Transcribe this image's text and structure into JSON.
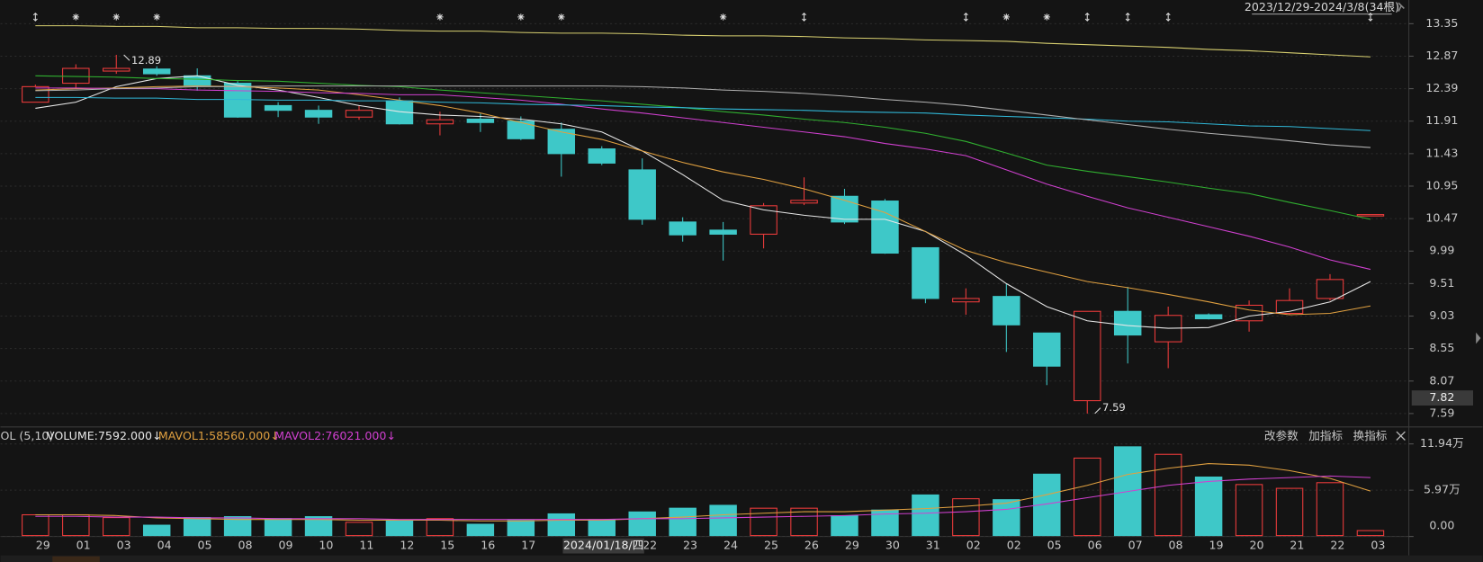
{
  "chart_data": [
    {
      "type": "candlestick",
      "range_label": "2023/12/29-2024/3/8(34根)",
      "categories": [
        "29",
        "01",
        "03",
        "04",
        "05",
        "08",
        "09",
        "10",
        "11",
        "12",
        "15",
        "16",
        "17",
        null,
        null,
        "22",
        "23",
        "24",
        "25",
        "26",
        "29",
        "30",
        "31",
        "02",
        "02",
        "05",
        "06",
        "07",
        "08",
        "19",
        "20",
        "21",
        "22",
        "03"
      ],
      "open": [
        12.19,
        12.47,
        12.65,
        12.68,
        12.58,
        12.47,
        12.14,
        12.07,
        11.97,
        12.21,
        11.87,
        11.94,
        11.91,
        11.79,
        11.5,
        11.19,
        10.42,
        10.3,
        10.24,
        10.7,
        10.8,
        10.73,
        10.04,
        9.24,
        9.32,
        8.78,
        7.78,
        9.1,
        8.65,
        9.05,
        8.96,
        9.07,
        9.29,
        10.52
      ],
      "high": [
        12.45,
        12.75,
        12.89,
        12.72,
        12.69,
        12.5,
        12.19,
        12.14,
        12.14,
        12.26,
        12.05,
        12.02,
        11.98,
        11.89,
        11.54,
        11.36,
        10.49,
        10.42,
        10.7,
        11.08,
        10.91,
        10.76,
        10.04,
        9.44,
        9.51,
        8.78,
        9.1,
        9.46,
        9.17,
        9.07,
        9.26,
        9.44,
        9.65,
        10.53
      ],
      "low": [
        12.19,
        12.4,
        12.61,
        12.58,
        12.36,
        11.96,
        11.97,
        11.87,
        11.93,
        11.86,
        11.7,
        11.75,
        11.63,
        11.09,
        11.26,
        10.38,
        10.13,
        9.85,
        10.03,
        10.67,
        10.39,
        9.95,
        9.22,
        9.05,
        8.5,
        8.01,
        7.59,
        8.33,
        8.26,
        8.98,
        8.8,
        9.05,
        9.26,
        10.52
      ],
      "close": [
        12.42,
        12.69,
        12.69,
        12.61,
        12.44,
        11.97,
        12.07,
        11.97,
        12.07,
        11.87,
        11.93,
        11.89,
        11.65,
        11.43,
        11.29,
        10.46,
        10.23,
        10.24,
        10.66,
        10.74,
        10.42,
        9.96,
        9.29,
        9.29,
        8.9,
        8.29,
        9.1,
        8.75,
        9.04,
        8.99,
        9.19,
        9.26,
        9.57,
        10.53
      ],
      "up_color": "#f03c3c",
      "down_color": "#3ec8c8",
      "ylim": [
        7.42,
        13.7
      ],
      "yticks": [
        13.35,
        12.87,
        12.39,
        11.91,
        11.43,
        10.95,
        10.47,
        9.99,
        9.51,
        9.03,
        8.55,
        8.07,
        7.59
      ],
      "grid": true,
      "series": [
        {
          "color": "#e8e8e8",
          "values": [
            12.1,
            12.19,
            12.42,
            12.54,
            12.58,
            12.44,
            12.37,
            12.26,
            12.14,
            12.05,
            12.0,
            11.98,
            11.94,
            11.87,
            11.75,
            11.47,
            11.12,
            10.74,
            10.6,
            10.52,
            10.46,
            10.46,
            10.28,
            9.93,
            9.51,
            9.17,
            8.96,
            8.89,
            8.85,
            8.86,
            9.03,
            9.1,
            9.24,
            9.54
          ]
        },
        {
          "color": "#e0a040",
          "values": [
            12.37,
            12.39,
            12.4,
            12.42,
            12.43,
            12.42,
            12.4,
            12.37,
            12.3,
            12.22,
            12.14,
            12.03,
            11.89,
            11.75,
            11.64,
            11.47,
            11.3,
            11.16,
            11.05,
            10.91,
            10.74,
            10.56,
            10.28,
            10.0,
            9.82,
            9.68,
            9.54,
            9.45,
            9.35,
            9.24,
            9.12,
            9.05,
            9.07,
            9.18
          ]
        },
        {
          "color": "#d040d0",
          "values": [
            12.4,
            12.4,
            12.39,
            12.39,
            12.37,
            12.36,
            12.35,
            12.33,
            12.32,
            12.3,
            12.3,
            12.26,
            12.22,
            12.16,
            12.09,
            12.03,
            11.96,
            11.89,
            11.82,
            11.75,
            11.68,
            11.58,
            11.5,
            11.4,
            11.19,
            10.98,
            10.8,
            10.63,
            10.49,
            10.35,
            10.21,
            10.05,
            9.86,
            9.72
          ]
        },
        {
          "color": "#30b030",
          "values": [
            12.58,
            12.57,
            12.56,
            12.54,
            12.53,
            12.51,
            12.5,
            12.47,
            12.44,
            12.42,
            12.37,
            12.33,
            12.29,
            12.25,
            12.21,
            12.16,
            12.11,
            12.05,
            12.0,
            11.94,
            11.89,
            11.82,
            11.73,
            11.61,
            11.44,
            11.26,
            11.17,
            11.09,
            11.01,
            10.92,
            10.84,
            10.71,
            10.59,
            10.46
          ]
        },
        {
          "color": "#30b8d8",
          "values": [
            12.26,
            12.26,
            12.25,
            12.25,
            12.23,
            12.23,
            12.22,
            12.22,
            12.21,
            12.21,
            12.19,
            12.18,
            12.16,
            12.15,
            12.14,
            12.12,
            12.11,
            12.09,
            12.08,
            12.07,
            12.05,
            12.04,
            12.03,
            12.0,
            11.98,
            11.96,
            11.94,
            11.91,
            11.9,
            11.87,
            11.84,
            11.83,
            11.8,
            11.77
          ]
        },
        {
          "color": "#b0b0b0",
          "values": [
            12.36,
            12.37,
            12.39,
            12.4,
            12.42,
            12.42,
            12.43,
            12.43,
            12.43,
            12.43,
            12.43,
            12.43,
            12.43,
            12.43,
            12.43,
            12.42,
            12.4,
            12.37,
            12.35,
            12.32,
            12.28,
            12.23,
            12.19,
            12.14,
            12.07,
            12.0,
            11.93,
            11.86,
            11.79,
            11.73,
            11.68,
            11.62,
            11.56,
            11.52
          ]
        },
        {
          "color": "#d8d070",
          "values": [
            13.32,
            13.32,
            13.31,
            13.31,
            13.29,
            13.29,
            13.28,
            13.28,
            13.27,
            13.25,
            13.24,
            13.24,
            13.22,
            13.21,
            13.21,
            13.2,
            13.18,
            13.17,
            13.17,
            13.16,
            13.14,
            13.13,
            13.11,
            13.1,
            13.09,
            13.06,
            13.04,
            13.02,
            13.0,
            12.97,
            12.95,
            12.92,
            12.89,
            12.86
          ]
        }
      ],
      "annotations": [
        {
          "value": 12.89
        },
        {
          "value": 7.59
        }
      ],
      "crosshair": {
        "price": 7.82,
        "date_label": "2024/01/18/四"
      }
    },
    {
      "type": "volume",
      "indicator": "OL (5,10)",
      "readouts": [
        {
          "text": "VOLUME:7592.000↓",
          "color": "#e8e8e8"
        },
        {
          "text": "MAVOL1:58560.000↓",
          "color": "#e0a040"
        },
        {
          "text": "MAVOL2:76021.000↓",
          "color": "#d040d0"
        }
      ],
      "buttons": [
        "改参数",
        "加指标",
        "换指标"
      ],
      "values": [
        2.8,
        2.8,
        2.44,
        1.46,
        2.44,
        2.56,
        2.31,
        2.56,
        1.83,
        2.07,
        2.31,
        1.58,
        2.07,
        2.92,
        2.19,
        3.17,
        3.65,
        4.02,
        3.65,
        3.65,
        2.68,
        3.41,
        5.36,
        4.87,
        4.75,
        8.04,
        10.11,
        11.57,
        10.6,
        7.67,
        6.7,
        6.21,
        6.94,
        0.76
      ],
      "series": [
        {
          "color": "#e0a040",
          "values": [
            2.8,
            2.8,
            2.7,
            2.4,
            2.3,
            2.2,
            2.2,
            2.2,
            2.1,
            2.1,
            2.1,
            2.0,
            2.0,
            2.1,
            2.1,
            2.3,
            2.5,
            2.8,
            3.0,
            3.2,
            3.2,
            3.4,
            3.6,
            3.9,
            4.3,
            5.4,
            6.6,
            8.0,
            8.8,
            9.4,
            9.2,
            8.5,
            7.5,
            5.86
          ]
        },
        {
          "color": "#d040d0",
          "values": [
            2.6,
            2.6,
            2.5,
            2.5,
            2.4,
            2.4,
            2.3,
            2.3,
            2.3,
            2.2,
            2.2,
            2.2,
            2.2,
            2.2,
            2.2,
            2.3,
            2.3,
            2.4,
            2.5,
            2.6,
            2.7,
            2.9,
            3.0,
            3.2,
            3.5,
            4.2,
            5.0,
            5.8,
            6.6,
            7.1,
            7.4,
            7.6,
            7.8,
            7.6
          ]
        }
      ],
      "ylim": [
        0,
        13.4
      ],
      "yticks": [
        {
          "value": 11.94,
          "label": "11.94万"
        },
        {
          "value": 5.97,
          "label": "5.97万"
        },
        {
          "value": 0,
          "label": "0.00"
        }
      ],
      "grid": true
    }
  ]
}
